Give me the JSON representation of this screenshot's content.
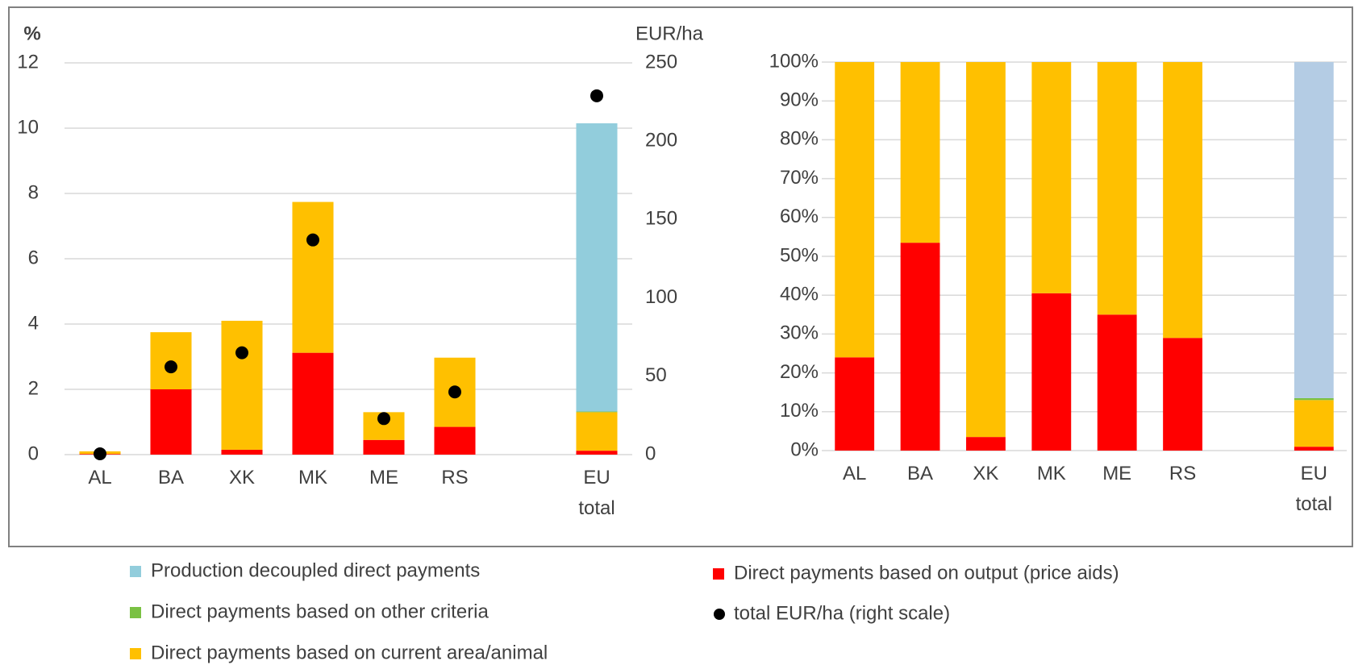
{
  "chart_data": [
    {
      "type": "bar",
      "stacked": true,
      "grid": true,
      "ylabel": "%",
      "y2label": "EUR/ha",
      "categories": [
        "AL",
        "BA",
        "XK",
        "MK",
        "ME",
        "RS",
        null,
        "EU total"
      ],
      "ylim": [
        0,
        12
      ],
      "yticks": [
        0,
        2,
        4,
        6,
        8,
        10,
        12
      ],
      "y2lim": [
        0,
        250
      ],
      "y2ticks": [
        0,
        50,
        100,
        150,
        200,
        250
      ],
      "series": [
        {
          "name": "Direct payments based on output (price aids)",
          "color": "#ff0000",
          "values": [
            0.02,
            2.0,
            0.15,
            3.12,
            0.45,
            0.85,
            null,
            0.12
          ]
        },
        {
          "name": "Direct payments based on current area/animal",
          "color": "#ffc000",
          "values": [
            0.08,
            1.75,
            3.95,
            4.62,
            0.85,
            2.12,
            null,
            1.18
          ]
        },
        {
          "name": "Direct payments based on other criteria",
          "color": "#7ac143",
          "values": [
            0,
            0,
            0,
            0,
            0,
            0,
            null,
            0.02
          ]
        },
        {
          "name": "Production decoupled direct payments",
          "color": "#92cddc",
          "values": [
            0,
            0,
            0,
            0,
            0,
            0,
            null,
            8.83
          ]
        },
        {
          "name": "total EUR/ha (right scale)",
          "type": "scatter",
          "axis": "y2",
          "color": "#000000",
          "values": [
            0.5,
            56,
            65,
            137,
            23,
            40,
            null,
            229
          ]
        }
      ]
    },
    {
      "type": "bar",
      "stacked": true,
      "grid": true,
      "categories": [
        "AL",
        "BA",
        "XK",
        "MK",
        "ME",
        "RS",
        null,
        "EU total"
      ],
      "ylim": [
        0,
        100
      ],
      "yticks": [
        {
          "value": 0,
          "label": "0%"
        },
        {
          "value": 10,
          "label": "10%"
        },
        {
          "value": 20,
          "label": "20%"
        },
        {
          "value": 30,
          "label": "30%"
        },
        {
          "value": 40,
          "label": "40%"
        },
        {
          "value": 50,
          "label": "50%"
        },
        {
          "value": 60,
          "label": "60%"
        },
        {
          "value": 70,
          "label": "70%"
        },
        {
          "value": 80,
          "label": "80%"
        },
        {
          "value": 90,
          "label": "90%"
        },
        {
          "value": 100,
          "label": "100%"
        }
      ],
      "series": [
        {
          "color": "#ff0000",
          "values": [
            24,
            53.5,
            3.5,
            40.5,
            35,
            29,
            null,
            1
          ]
        },
        {
          "color": "#ffc000",
          "values": [
            76,
            46.5,
            96.5,
            59.5,
            65,
            71,
            null,
            12
          ]
        },
        {
          "color": "#7ac143",
          "values": [
            0,
            0,
            0,
            0,
            0,
            0,
            null,
            0.5
          ]
        },
        {
          "color": "#b4cce4",
          "values": [
            0,
            0,
            0,
            0,
            0,
            0,
            null,
            86.5
          ]
        }
      ]
    }
  ]
}
